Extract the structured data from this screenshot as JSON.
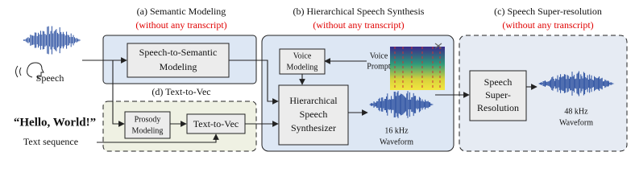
{
  "panels": [
    {
      "title": "(a) Semantic Modeling",
      "subtitle": "(without any transcript)"
    },
    {
      "title": "(b) Hierarchical Speech Synthesis",
      "subtitle": "(without any transcript)"
    },
    {
      "title": "(c) Speech Super-resolution",
      "subtitle": "(without any transcript)"
    },
    {
      "title": "(d) Text-to-Vec"
    }
  ],
  "nodes": [
    {
      "lines": [
        "Speech-to-Semantic",
        "Modeling"
      ]
    },
    {
      "lines": [
        "Voice",
        "Modeling"
      ]
    },
    {
      "lines": [
        "Hierarchical",
        "Speech",
        "Synthesizer"
      ]
    },
    {
      "lines": [
        "Prosody",
        "Modeling"
      ]
    },
    {
      "lines": [
        "Text-to-Vec"
      ]
    },
    {
      "lines": [
        "Speech",
        "Super-",
        "Resolution"
      ]
    }
  ],
  "labels": {
    "speech": "Speech",
    "hello": "“Hello, World!”",
    "text_sequence": "Text sequence",
    "voice_prompt": [
      "Voice",
      "Prompt"
    ],
    "wave16": [
      "16 kHz",
      "Waveform"
    ],
    "wave48": [
      "48 kHz",
      "Waveform"
    ]
  }
}
